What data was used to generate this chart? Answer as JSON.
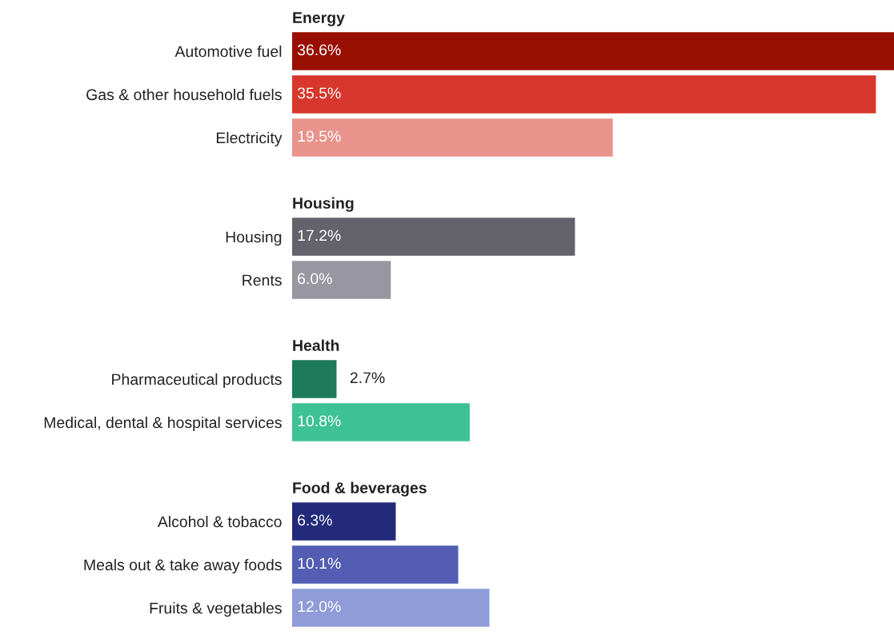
{
  "chart_data": [
    {
      "type": "bar",
      "orientation": "horizontal",
      "title": "Energy",
      "categories": [
        "Automotive fuel",
        "Gas & other household fuels",
        "Electricity"
      ],
      "values": [
        36.6,
        35.5,
        19.5
      ],
      "colors": [
        "#990f02",
        "#d7372c",
        "#e8948d"
      ],
      "value_labels": [
        "36.6%",
        "35.5%",
        "19.5%"
      ]
    },
    {
      "type": "bar",
      "orientation": "horizontal",
      "title": "Housing",
      "categories": [
        "Housing",
        "Rents"
      ],
      "values": [
        17.2,
        6.0
      ],
      "colors": [
        "#64636b",
        "#9896a0"
      ],
      "value_labels": [
        "17.2%",
        "6.0%"
      ]
    },
    {
      "type": "bar",
      "orientation": "horizontal",
      "title": "Health",
      "categories": [
        "Pharmaceutical products",
        "Medical, dental & hospital services"
      ],
      "values": [
        2.7,
        10.8
      ],
      "colors": [
        "#1d7a5a",
        "#3ec195"
      ],
      "value_labels": [
        "2.7%",
        "10.8%"
      ]
    },
    {
      "type": "bar",
      "orientation": "horizontal",
      "title": "Food & beverages",
      "categories": [
        "Alcohol & tobacco",
        "Meals out & take away foods",
        "Fruits & vegetables"
      ],
      "values": [
        6.3,
        10.1,
        12.0
      ],
      "colors": [
        "#232a7a",
        "#525db3",
        "#8f9cd8"
      ],
      "value_labels": [
        "6.3%",
        "10.1%",
        "12.0%"
      ]
    }
  ]
}
